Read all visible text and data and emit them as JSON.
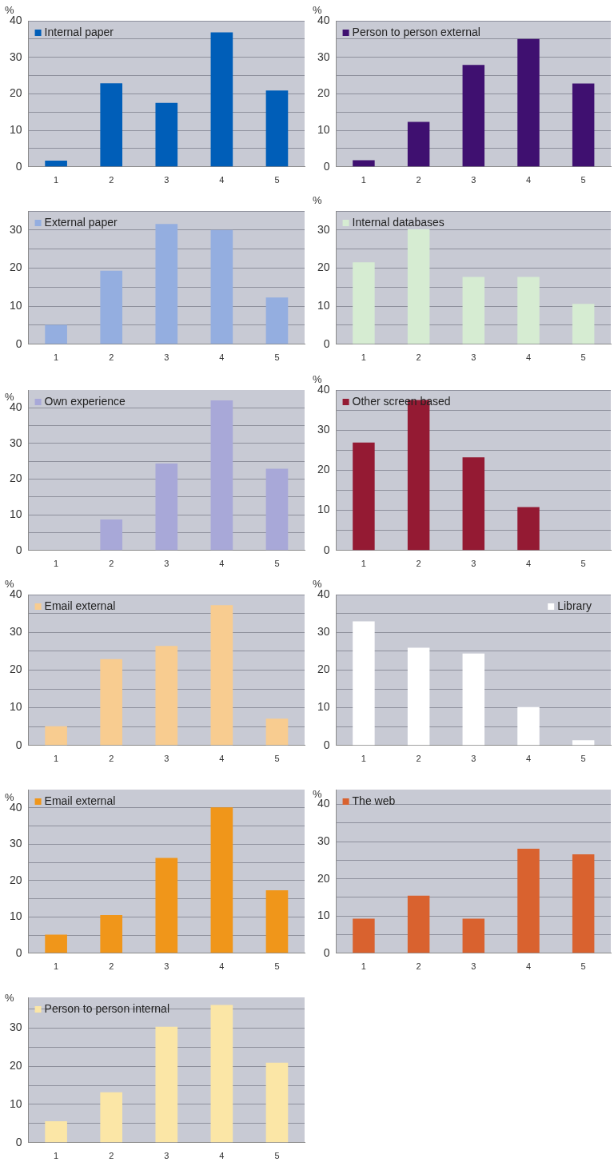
{
  "chart_data": [
    {
      "type": "bar",
      "ylabel": "%",
      "categories": [
        "1",
        "2",
        "3",
        "4",
        "5"
      ],
      "series": [
        {
          "name": "Internal paper",
          "color": "#005eb8",
          "values": [
            1.7,
            22.9,
            17.5,
            36.8,
            20.9
          ]
        }
      ],
      "ylim": [
        0,
        40
      ],
      "yticks": [
        0,
        {
          "value": 5,
          "label": null
        },
        10,
        {
          "value": 15,
          "label": null
        },
        20,
        {
          "value": 25,
          "label": null
        },
        30,
        {
          "value": 35,
          "label": null
        },
        40
      ],
      "grid": "y",
      "legend": "top left"
    },
    {
      "type": "bar",
      "ylabel": "%",
      "categories": [
        "1",
        "2",
        "3",
        "4",
        "5"
      ],
      "series": [
        {
          "name": "Person to person external",
          "color": "#3f1070",
          "values": [
            1.8,
            12.3,
            27.9,
            35,
            22.8
          ]
        }
      ],
      "ylim": [
        0,
        40
      ],
      "yticks": [
        0,
        {
          "value": 5,
          "label": null
        },
        10,
        {
          "value": 15,
          "label": null
        },
        20,
        {
          "value": 25,
          "label": null
        },
        30,
        {
          "value": 35,
          "label": null
        },
        40
      ],
      "grid": "y",
      "legend": "top left"
    },
    {
      "type": "bar",
      "categories": [
        "1",
        "2",
        "3",
        "4",
        "5"
      ],
      "series": [
        {
          "name": "External paper",
          "color": "#94aee0",
          "values": [
            5.1,
            19.3,
            31.6,
            30,
            12.3
          ]
        }
      ],
      "ylim": [
        0,
        35
      ],
      "yticks": [
        0,
        {
          "value": 5,
          "label": null
        },
        10,
        {
          "value": 15,
          "label": null
        },
        20,
        {
          "value": 25,
          "label": null
        },
        30,
        {
          "value": 35,
          "label": null
        }
      ],
      "grid": "y",
      "legend": "top left"
    },
    {
      "type": "bar",
      "ylabel": "%",
      "categories": [
        "1",
        "2",
        "3",
        "4",
        "5"
      ],
      "series": [
        {
          "name": "Internal databases",
          "color": "#d6ecd2",
          "values": [
            21.5,
            30.2,
            17.7,
            17.7,
            10.6
          ]
        }
      ],
      "ylim": [
        0,
        35
      ],
      "yticks": [
        0,
        {
          "value": 5,
          "label": null
        },
        10,
        {
          "value": 15,
          "label": null
        },
        20,
        {
          "value": 25,
          "label": null
        },
        30,
        {
          "value": 35,
          "label": null
        }
      ],
      "grid": "y",
      "legend": "top left"
    },
    {
      "type": "bar",
      "ylabel": "%",
      "categories": [
        "1",
        "2",
        "3",
        "4",
        "5"
      ],
      "series": [
        {
          "name": "Own experience",
          "color": "#a8a8d8",
          "values": [
            0,
            8.7,
            24.4,
            42.1,
            22.9
          ]
        }
      ],
      "ylim": [
        0,
        45
      ],
      "yticks": [
        0,
        {
          "value": 5,
          "label": null
        },
        10,
        {
          "value": 15,
          "label": null
        },
        20,
        {
          "value": 25,
          "label": null
        },
        30,
        {
          "value": 35,
          "label": null
        },
        40
      ],
      "grid": "y",
      "legend": "top left"
    },
    {
      "type": "bar",
      "ylabel": "%",
      "categories": [
        "1",
        "2",
        "3",
        "4",
        "5"
      ],
      "series": [
        {
          "name": "Other screen based",
          "color": "#941a33",
          "values": [
            26.9,
            37.5,
            23.2,
            10.8,
            0
          ]
        }
      ],
      "ylim": [
        0,
        40
      ],
      "yticks": [
        0,
        {
          "value": 5,
          "label": null
        },
        10,
        {
          "value": 15,
          "label": null
        },
        20,
        {
          "value": 25,
          "label": null
        },
        30,
        {
          "value": 35,
          "label": null
        },
        40
      ],
      "grid": "y",
      "legend": "top left"
    },
    {
      "type": "bar",
      "ylabel": "%",
      "categories": [
        "1",
        "2",
        "3",
        "4",
        "5"
      ],
      "series": [
        {
          "name": "Email external",
          "color": "#f8cc90",
          "values": [
            5.1,
            22.9,
            26.4,
            37.2,
            7.1
          ]
        }
      ],
      "ylim": [
        0,
        40
      ],
      "yticks": [
        0,
        {
          "value": 5,
          "label": null
        },
        10,
        {
          "value": 15,
          "label": null
        },
        20,
        {
          "value": 25,
          "label": null
        },
        30,
        {
          "value": 35,
          "label": null
        },
        40
      ],
      "grid": "y",
      "legend": "top left"
    },
    {
      "type": "bar",
      "ylabel": "%",
      "categories": [
        "1",
        "2",
        "3",
        "4",
        "5"
      ],
      "series": [
        {
          "name": "Library",
          "color": "#ffffff",
          "values": [
            32.9,
            25.9,
            24.4,
            10.2,
            1.4
          ]
        }
      ],
      "ylim": [
        0,
        40
      ],
      "yticks": [
        0,
        {
          "value": 5,
          "label": null
        },
        10,
        {
          "value": 15,
          "label": null
        },
        20,
        {
          "value": 25,
          "label": null
        },
        30,
        {
          "value": 35,
          "label": null
        },
        40
      ],
      "grid": "y",
      "legend": "top right"
    },
    {
      "type": "bar",
      "ylabel": "%",
      "categories": [
        "1",
        "2",
        "3",
        "4",
        "5"
      ],
      "series": [
        {
          "name": "Email external",
          "color": "#f0961a",
          "values": [
            5.1,
            10.5,
            26.2,
            40.1,
            17.3
          ]
        }
      ],
      "ylim": [
        0,
        45
      ],
      "yticks": [
        0,
        {
          "value": 5,
          "label": null
        },
        10,
        {
          "value": 15,
          "label": null
        },
        20,
        {
          "value": 25,
          "label": null
        },
        30,
        {
          "value": 35,
          "label": null
        },
        40
      ],
      "grid": "y",
      "legend": "top left"
    },
    {
      "type": "bar",
      "ylabel": "%",
      "categories": [
        "1",
        "2",
        "3",
        "4",
        "5"
      ],
      "series": [
        {
          "name": "The web",
          "color": "#d9622f",
          "values": [
            9.3,
            15.5,
            9.3,
            28.1,
            26.6
          ]
        }
      ],
      "ylim": [
        0,
        44
      ],
      "yticks": [
        0,
        {
          "value": 5,
          "label": null
        },
        10,
        {
          "value": 15,
          "label": null
        },
        20,
        {
          "value": 25,
          "label": null
        },
        30,
        {
          "value": 35,
          "label": null
        },
        40
      ],
      "grid": "y",
      "legend": "top left"
    },
    {
      "type": "bar",
      "ylabel": "%",
      "categories": [
        "1",
        "2",
        "3",
        "4",
        "5"
      ],
      "series": [
        {
          "name": "Person to person internal",
          "color": "#fbe6a6",
          "values": [
            5.6,
            13.2,
            30.3,
            36,
            20.9
          ]
        }
      ],
      "ylim": [
        0,
        38
      ],
      "yticks": [
        0,
        {
          "value": 5,
          "label": null
        },
        10,
        {
          "value": 15,
          "label": null
        },
        20,
        {
          "value": 25,
          "label": null
        },
        30,
        {
          "value": 35,
          "label": null
        }
      ],
      "grid": "y",
      "legend": "top left"
    }
  ]
}
